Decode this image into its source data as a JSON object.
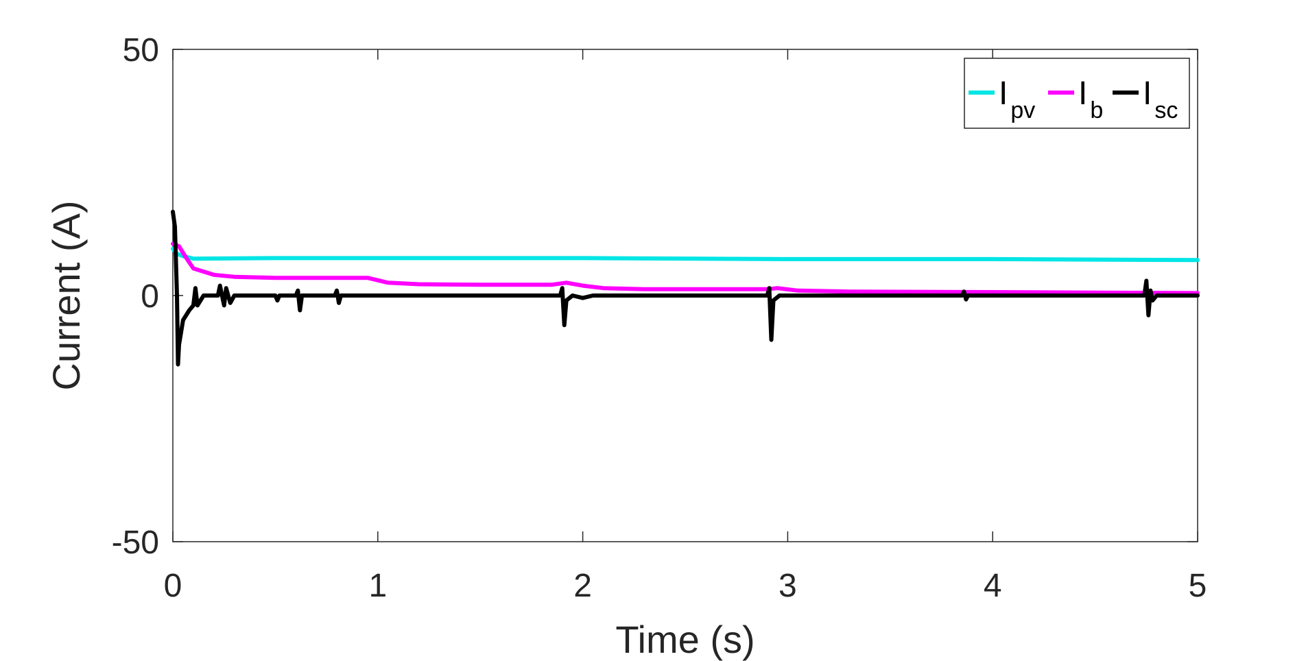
{
  "chart_data": {
    "type": "line",
    "xlabel": "Time (s)",
    "ylabel": "Current (A)",
    "xlim": [
      0,
      5
    ],
    "ylim": [
      -50,
      50
    ],
    "xticks": [
      "0",
      "1",
      "2",
      "3",
      "4",
      "5"
    ],
    "yticks": [
      "50",
      "0",
      "-50"
    ],
    "grid": false,
    "legend_position": "top-right",
    "series": [
      {
        "name": "I",
        "name_sub": "pv",
        "color": "#00e5e5",
        "points": [
          [
            0,
            9.5
          ],
          [
            0.02,
            8.5
          ],
          [
            0.05,
            8.0
          ],
          [
            0.1,
            7.5
          ],
          [
            0.5,
            7.6
          ],
          [
            1.0,
            7.6
          ],
          [
            2.0,
            7.6
          ],
          [
            3.0,
            7.4
          ],
          [
            4.0,
            7.4
          ],
          [
            5.0,
            7.2
          ]
        ]
      },
      {
        "name": "I",
        "name_sub": "b",
        "color": "#ff00ff",
        "points": [
          [
            0,
            10.5
          ],
          [
            0.03,
            10.0
          ],
          [
            0.06,
            8.0
          ],
          [
            0.1,
            5.5
          ],
          [
            0.2,
            4.2
          ],
          [
            0.3,
            3.8
          ],
          [
            0.5,
            3.6
          ],
          [
            0.8,
            3.6
          ],
          [
            0.95,
            3.6
          ],
          [
            1.05,
            2.6
          ],
          [
            1.2,
            2.3
          ],
          [
            1.5,
            2.2
          ],
          [
            1.85,
            2.2
          ],
          [
            1.92,
            2.6
          ],
          [
            2.0,
            2.0
          ],
          [
            2.1,
            1.5
          ],
          [
            2.3,
            1.3
          ],
          [
            2.9,
            1.3
          ],
          [
            2.95,
            1.5
          ],
          [
            3.05,
            1.0
          ],
          [
            3.3,
            0.8
          ],
          [
            4.0,
            0.7
          ],
          [
            4.5,
            0.6
          ],
          [
            5.0,
            0.5
          ]
        ]
      },
      {
        "name": "I",
        "name_sub": "sc",
        "color": "#000000",
        "points": [
          [
            0,
            17
          ],
          [
            0.01,
            14
          ],
          [
            0.02,
            0
          ],
          [
            0.025,
            -14
          ],
          [
            0.03,
            -10
          ],
          [
            0.05,
            -5
          ],
          [
            0.08,
            -3
          ],
          [
            0.1,
            -2
          ],
          [
            0.11,
            1.5
          ],
          [
            0.12,
            -2
          ],
          [
            0.15,
            0
          ],
          [
            0.22,
            0
          ],
          [
            0.23,
            2
          ],
          [
            0.24,
            0
          ],
          [
            0.25,
            -2
          ],
          [
            0.26,
            1.5
          ],
          [
            0.27,
            0
          ],
          [
            0.28,
            -1.5
          ],
          [
            0.3,
            0
          ],
          [
            0.5,
            0
          ],
          [
            0.51,
            -1
          ],
          [
            0.52,
            0
          ],
          [
            0.6,
            0
          ],
          [
            0.61,
            1
          ],
          [
            0.62,
            -3
          ],
          [
            0.63,
            0
          ],
          [
            0.79,
            0
          ],
          [
            0.8,
            1
          ],
          [
            0.81,
            -1.5
          ],
          [
            0.82,
            0
          ],
          [
            1.89,
            0
          ],
          [
            1.9,
            1.5
          ],
          [
            1.91,
            -6
          ],
          [
            1.92,
            -1
          ],
          [
            1.95,
            0
          ],
          [
            2.0,
            -0.5
          ],
          [
            2.05,
            0
          ],
          [
            2.9,
            0
          ],
          [
            2.91,
            1.5
          ],
          [
            2.92,
            -9
          ],
          [
            2.93,
            -1
          ],
          [
            2.96,
            0
          ],
          [
            3.85,
            0
          ],
          [
            3.86,
            0.8
          ],
          [
            3.87,
            -0.8
          ],
          [
            3.88,
            0
          ],
          [
            4.74,
            0
          ],
          [
            4.75,
            3
          ],
          [
            4.76,
            -4
          ],
          [
            4.77,
            1
          ],
          [
            4.78,
            -1
          ],
          [
            4.8,
            0
          ],
          [
            5.0,
            0
          ]
        ]
      }
    ]
  }
}
